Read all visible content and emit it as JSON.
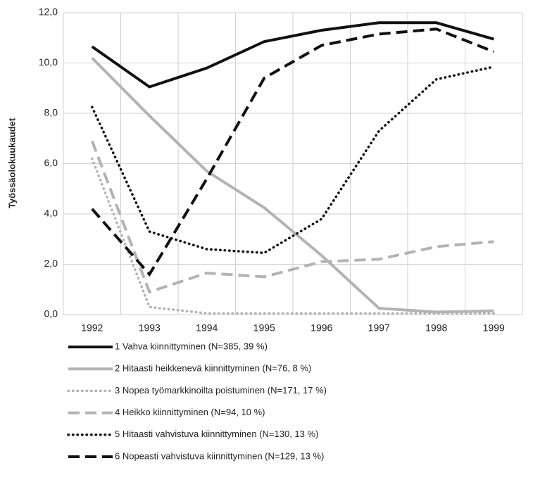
{
  "chart_data": {
    "type": "line",
    "y_label": "Työssäolokuukaudet",
    "categories": [
      "1992",
      "1993",
      "1994",
      "1995",
      "1996",
      "1997",
      "1998",
      "1999"
    ],
    "ylim": [
      0,
      12
    ],
    "yticks": [
      {
        "value": 0,
        "label": "0,0"
      },
      {
        "value": 2,
        "label": "2,0"
      },
      {
        "value": 4,
        "label": "4,0"
      },
      {
        "value": 6,
        "label": "6,0"
      },
      {
        "value": 8,
        "label": "8,0"
      },
      {
        "value": 10,
        "label": "10,0"
      },
      {
        "value": 12,
        "label": "12,0"
      }
    ],
    "grid": true,
    "series": [
      {
        "name": "1 Vahva kiinnittyminen (N=385, 39 %)",
        "color": "#111111",
        "dash": "solid",
        "values": [
          10.65,
          9.05,
          9.8,
          10.85,
          11.3,
          11.6,
          11.6,
          10.95
        ]
      },
      {
        "name": "2 Hitaasti heikkenevä kiinnittyminen (N=76, 8 %)",
        "color": "#b3b3b3",
        "dash": "solid",
        "values": [
          10.2,
          7.9,
          5.7,
          4.25,
          2.35,
          0.25,
          0.1,
          0.15
        ]
      },
      {
        "name": "3 Nopea työmarkkinoilta poistuminen (N=171, 17 %)",
        "color": "#b3b3b3",
        "dash": "dotted",
        "values": [
          6.2,
          0.3,
          0.05,
          0.05,
          0.05,
          0.05,
          0.05,
          0.05
        ]
      },
      {
        "name": "4 Heikko kiinnittyminen (N=94, 10 %)",
        "color": "#b3b3b3",
        "dash": "dashed",
        "values": [
          6.9,
          0.9,
          1.65,
          1.5,
          2.1,
          2.2,
          2.7,
          2.9
        ]
      },
      {
        "name": "5 Hitaasti vahvistuva kiinnittyminen (N=130, 13 %)",
        "color": "#111111",
        "dash": "dotted",
        "values": [
          8.25,
          3.3,
          2.6,
          2.45,
          3.8,
          7.3,
          9.35,
          9.85
        ]
      },
      {
        "name": "6 Nopeasti vahvistuva kiinnittyminen (N=129, 13 %)",
        "color": "#111111",
        "dash": "dashed",
        "values": [
          4.2,
          1.6,
          5.4,
          9.4,
          10.7,
          11.15,
          11.35,
          10.45
        ]
      }
    ]
  }
}
